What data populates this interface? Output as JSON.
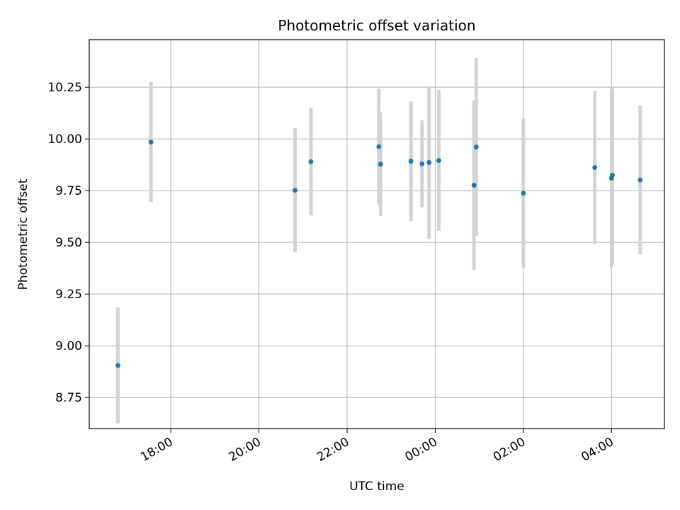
{
  "chart_data": {
    "type": "scatter",
    "title": "Photometric offset variation",
    "xlabel": "UTC time",
    "ylabel": "Photometric offset",
    "x_unit": "UTC time (hours, 0 = 00:00)",
    "xlim": [
      -7.85,
      5.2
    ],
    "ylim": [
      8.6,
      10.48
    ],
    "x_ticks": [
      {
        "value": -6,
        "label": "18:00"
      },
      {
        "value": -4,
        "label": "20:00"
      },
      {
        "value": -2,
        "label": "22:00"
      },
      {
        "value": 0,
        "label": "00:00"
      },
      {
        "value": 2,
        "label": "02:00"
      },
      {
        "value": 4,
        "label": "04:00"
      }
    ],
    "y_ticks": [
      8.75,
      9.0,
      9.25,
      9.5,
      9.75,
      10.0,
      10.25
    ],
    "y_tick_labels": [
      "8.75",
      "9.00",
      "9.25",
      "9.50",
      "9.75",
      "10.00",
      "10.25"
    ],
    "grid": true,
    "point_color": "#1f77b4",
    "errorbar_color": "#d3d3d3",
    "points": [
      {
        "x": -7.2,
        "y": 8.905,
        "err": 0.28
      },
      {
        "x": -6.45,
        "y": 9.985,
        "err": 0.29
      },
      {
        "x": -3.18,
        "y": 9.752,
        "err": 0.3
      },
      {
        "x": -2.82,
        "y": 9.89,
        "err": 0.26
      },
      {
        "x": -1.28,
        "y": 9.963,
        "err": 0.28
      },
      {
        "x": -1.24,
        "y": 9.878,
        "err": 0.25
      },
      {
        "x": -0.55,
        "y": 9.893,
        "err": 0.29
      },
      {
        "x": -0.3,
        "y": 9.88,
        "err": 0.21
      },
      {
        "x": -0.14,
        "y": 9.886,
        "err": 0.37
      },
      {
        "x": 0.08,
        "y": 9.896,
        "err": 0.34
      },
      {
        "x": 0.88,
        "y": 9.776,
        "err": 0.41
      },
      {
        "x": 0.93,
        "y": 9.961,
        "err": 0.43
      },
      {
        "x": 2.0,
        "y": 9.738,
        "err": 0.36
      },
      {
        "x": 3.62,
        "y": 9.862,
        "err": 0.37
      },
      {
        "x": 4.0,
        "y": 9.81,
        "err": 0.43
      },
      {
        "x": 4.02,
        "y": 9.825,
        "err": 0.43
      },
      {
        "x": 4.65,
        "y": 9.802,
        "err": 0.36
      }
    ]
  }
}
